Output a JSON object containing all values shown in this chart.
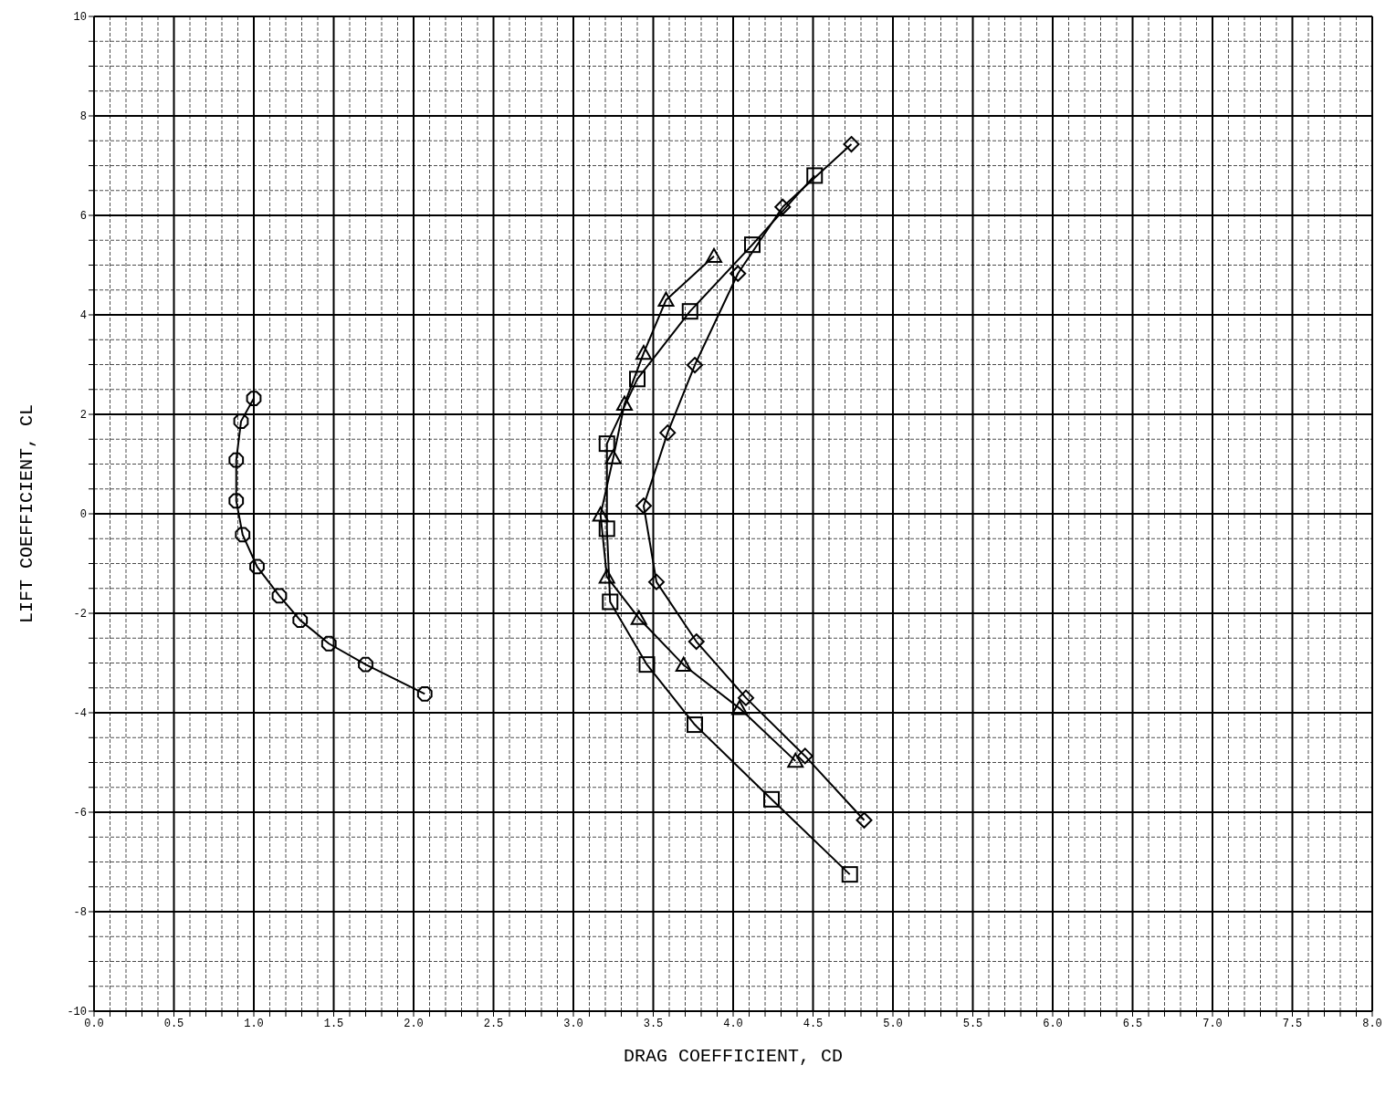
{
  "chart_data": {
    "type": "line",
    "xlabel": "DRAG COEFFICIENT, CD",
    "ylabel": "LIFT COEFFICIENT, CL",
    "xlim": [
      0,
      8
    ],
    "ylim": [
      -10,
      10
    ],
    "xticks": [
      {
        "value": 0,
        "label": "0.0"
      },
      {
        "value": 0.1,
        "label": null
      },
      {
        "value": 0.2,
        "label": null
      },
      {
        "value": 0.3,
        "label": null
      },
      {
        "value": 0.4,
        "label": null
      },
      {
        "value": 0.5,
        "label": "0.5"
      },
      {
        "value": 0.6,
        "label": null
      },
      {
        "value": 0.7,
        "label": null
      },
      {
        "value": 0.8,
        "label": null
      },
      {
        "value": 0.9,
        "label": null
      },
      {
        "value": 1,
        "label": "1.0"
      },
      {
        "value": 1.1,
        "label": null
      },
      {
        "value": 1.2,
        "label": null
      },
      {
        "value": 1.3,
        "label": null
      },
      {
        "value": 1.4,
        "label": null
      },
      {
        "value": 1.5,
        "label": "1.5"
      },
      {
        "value": 1.6,
        "label": null
      },
      {
        "value": 1.7,
        "label": null
      },
      {
        "value": 1.8,
        "label": null
      },
      {
        "value": 1.9,
        "label": null
      },
      {
        "value": 2,
        "label": "2.0"
      },
      {
        "value": 2.1,
        "label": null
      },
      {
        "value": 2.2,
        "label": null
      },
      {
        "value": 2.3,
        "label": null
      },
      {
        "value": 2.4,
        "label": null
      },
      {
        "value": 2.5,
        "label": "2.5"
      },
      {
        "value": 2.6,
        "label": null
      },
      {
        "value": 2.7,
        "label": null
      },
      {
        "value": 2.8,
        "label": null
      },
      {
        "value": 2.9,
        "label": null
      },
      {
        "value": 3,
        "label": "3.0"
      },
      {
        "value": 3.1,
        "label": null
      },
      {
        "value": 3.2,
        "label": null
      },
      {
        "value": 3.3,
        "label": null
      },
      {
        "value": 3.4,
        "label": null
      },
      {
        "value": 3.5,
        "label": "3.5"
      },
      {
        "value": 3.6,
        "label": null
      },
      {
        "value": 3.7,
        "label": null
      },
      {
        "value": 3.8,
        "label": null
      },
      {
        "value": 3.9,
        "label": null
      },
      {
        "value": 4,
        "label": "4.0"
      },
      {
        "value": 4.1,
        "label": null
      },
      {
        "value": 4.2,
        "label": null
      },
      {
        "value": 4.3,
        "label": null
      },
      {
        "value": 4.4,
        "label": null
      },
      {
        "value": 4.5,
        "label": "4.5"
      },
      {
        "value": 4.6,
        "label": null
      },
      {
        "value": 4.7,
        "label": null
      },
      {
        "value": 4.8,
        "label": null
      },
      {
        "value": 4.9,
        "label": null
      },
      {
        "value": 5,
        "label": "5.0"
      },
      {
        "value": 5.1,
        "label": null
      },
      {
        "value": 5.2,
        "label": null
      },
      {
        "value": 5.3,
        "label": null
      },
      {
        "value": 5.4,
        "label": null
      },
      {
        "value": 5.5,
        "label": "5.5"
      },
      {
        "value": 5.6,
        "label": null
      },
      {
        "value": 5.7,
        "label": null
      },
      {
        "value": 5.8,
        "label": null
      },
      {
        "value": 5.9,
        "label": null
      },
      {
        "value": 6,
        "label": "6.0"
      },
      {
        "value": 6.1,
        "label": null
      },
      {
        "value": 6.2,
        "label": null
      },
      {
        "value": 6.3,
        "label": null
      },
      {
        "value": 6.4,
        "label": null
      },
      {
        "value": 6.5,
        "label": "6.5"
      },
      {
        "value": 6.6,
        "label": null
      },
      {
        "value": 6.7,
        "label": null
      },
      {
        "value": 6.8,
        "label": null
      },
      {
        "value": 6.9,
        "label": null
      },
      {
        "value": 7,
        "label": "7.0"
      },
      {
        "value": 7.1,
        "label": null
      },
      {
        "value": 7.2,
        "label": null
      },
      {
        "value": 7.3,
        "label": null
      },
      {
        "value": 7.4,
        "label": null
      },
      {
        "value": 7.5,
        "label": "7.5"
      },
      {
        "value": 7.6,
        "label": null
      },
      {
        "value": 7.7,
        "label": null
      },
      {
        "value": 7.8,
        "label": null
      },
      {
        "value": 7.9,
        "label": null
      },
      {
        "value": 8,
        "label": "8.0"
      }
    ],
    "yticks": [
      -10,
      {
        "value": -9.5,
        "label": null
      },
      {
        "value": -9,
        "label": null
      },
      {
        "value": -8.5,
        "label": null
      },
      -8,
      {
        "value": -7.5,
        "label": null
      },
      {
        "value": -7,
        "label": null
      },
      {
        "value": -6.5,
        "label": null
      },
      -6,
      {
        "value": -5.5,
        "label": null
      },
      {
        "value": -5,
        "label": null
      },
      {
        "value": -4.5,
        "label": null
      },
      -4,
      {
        "value": -3.5,
        "label": null
      },
      {
        "value": -3,
        "label": null
      },
      {
        "value": -2.5,
        "label": null
      },
      -2,
      {
        "value": -1.5,
        "label": null
      },
      {
        "value": -1,
        "label": null
      },
      {
        "value": -0.5,
        "label": null
      },
      0,
      {
        "value": 0.5,
        "label": null
      },
      {
        "value": 1,
        "label": null
      },
      {
        "value": 1.5,
        "label": null
      },
      2,
      {
        "value": 2.5,
        "label": null
      },
      {
        "value": 3,
        "label": null
      },
      {
        "value": 3.5,
        "label": null
      },
      4,
      {
        "value": 4.5,
        "label": null
      },
      {
        "value": 5,
        "label": null
      },
      {
        "value": 5.5,
        "label": null
      },
      6,
      {
        "value": 6.5,
        "label": null
      },
      {
        "value": 7,
        "label": null
      },
      {
        "value": 7.5,
        "label": null
      },
      8,
      {
        "value": 8.5,
        "label": null
      },
      {
        "value": 9,
        "label": null
      },
      {
        "value": 9.5,
        "label": null
      },
      10
    ],
    "grid": true,
    "line_style": "solid",
    "series": [
      {
        "color": "#000000",
        "marker": "circle",
        "x": [
          1.0,
          0.92,
          0.89,
          0.89,
          0.93,
          1.02,
          1.16,
          1.29,
          1.47,
          1.7,
          2.07
        ],
        "values": [
          2.32,
          1.86,
          1.08,
          0.26,
          -0.42,
          -1.06,
          -1.65,
          -2.14,
          -2.61,
          -3.03,
          -3.62
        ]
      },
      {
        "color": "#000000",
        "marker": "diamond",
        "x": [
          4.74,
          4.31,
          4.03,
          3.76,
          3.59,
          3.44,
          3.52,
          3.77,
          4.08,
          4.45,
          4.82
        ],
        "values": [
          7.43,
          6.17,
          4.83,
          2.99,
          1.63,
          0.16,
          -1.37,
          -2.57,
          -3.7,
          -4.87,
          -6.16
        ]
      },
      {
        "color": "#000000",
        "marker": "square",
        "x": [
          4.51,
          4.12,
          3.73,
          3.4,
          3.21,
          3.21,
          3.23,
          3.46,
          3.76,
          4.24,
          4.73
        ],
        "values": [
          6.8,
          5.41,
          4.07,
          2.71,
          1.41,
          -0.3,
          -1.77,
          -3.03,
          -4.24,
          -5.74,
          -7.25
        ]
      },
      {
        "color": "#000000",
        "marker": "triangle",
        "x": [
          3.88,
          3.58,
          3.44,
          3.32,
          3.25,
          3.17,
          3.21,
          3.41,
          3.69,
          4.04,
          4.39
        ],
        "values": [
          5.18,
          4.3,
          3.23,
          2.21,
          1.13,
          -0.02,
          -1.27,
          -2.1,
          -3.04,
          -3.91,
          -4.97
        ]
      }
    ]
  }
}
